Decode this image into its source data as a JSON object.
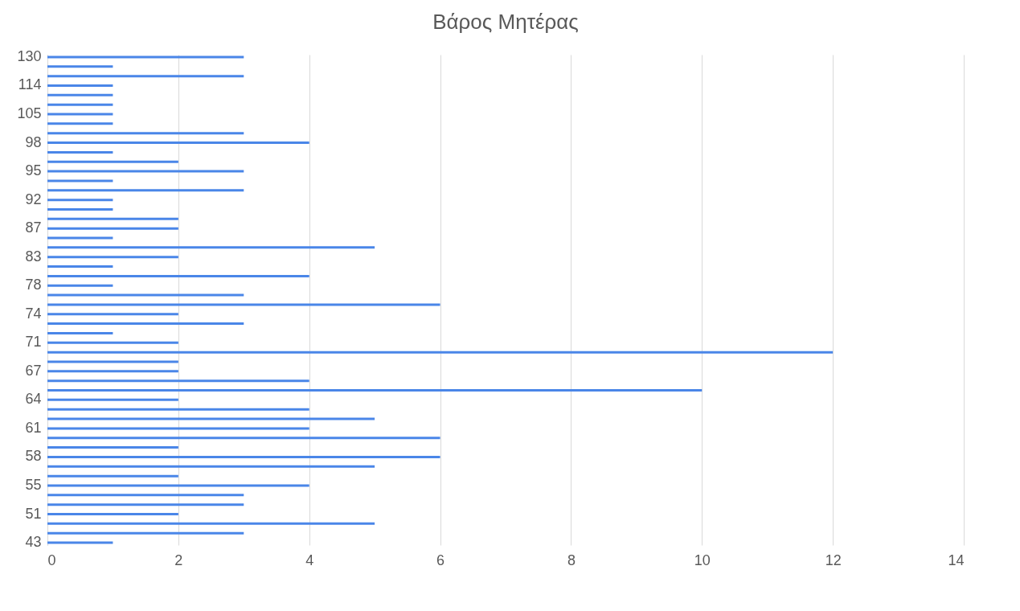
{
  "chart_data": {
    "type": "bar",
    "orientation": "horizontal",
    "title": "Βάρος Μητέρας",
    "categories": [
      "130",
      null,
      null,
      "114",
      null,
      null,
      "105",
      null,
      null,
      "98",
      null,
      null,
      "95",
      null,
      null,
      "92",
      null,
      null,
      "87",
      null,
      null,
      "83",
      null,
      null,
      "78",
      null,
      null,
      "74",
      null,
      null,
      "71",
      null,
      null,
      "67",
      null,
      null,
      "64",
      null,
      null,
      "61",
      null,
      null,
      "58",
      null,
      null,
      "55",
      null,
      null,
      "51",
      null,
      null,
      "43"
    ],
    "values": [
      3,
      1,
      3,
      1,
      1,
      1,
      1,
      1,
      3,
      4,
      1,
      2,
      3,
      1,
      3,
      1,
      1,
      2,
      2,
      1,
      5,
      2,
      1,
      4,
      1,
      3,
      6,
      2,
      3,
      1,
      2,
      12,
      2,
      2,
      4,
      10,
      2,
      4,
      5,
      4,
      6,
      2,
      6,
      5,
      2,
      4,
      3,
      3,
      2,
      5,
      3,
      1
    ],
    "color": "#4a86e8",
    "xlim": [
      0,
      14
    ],
    "xticks": [
      0,
      2,
      4,
      6,
      8,
      10,
      12,
      14
    ],
    "grid": "x"
  }
}
